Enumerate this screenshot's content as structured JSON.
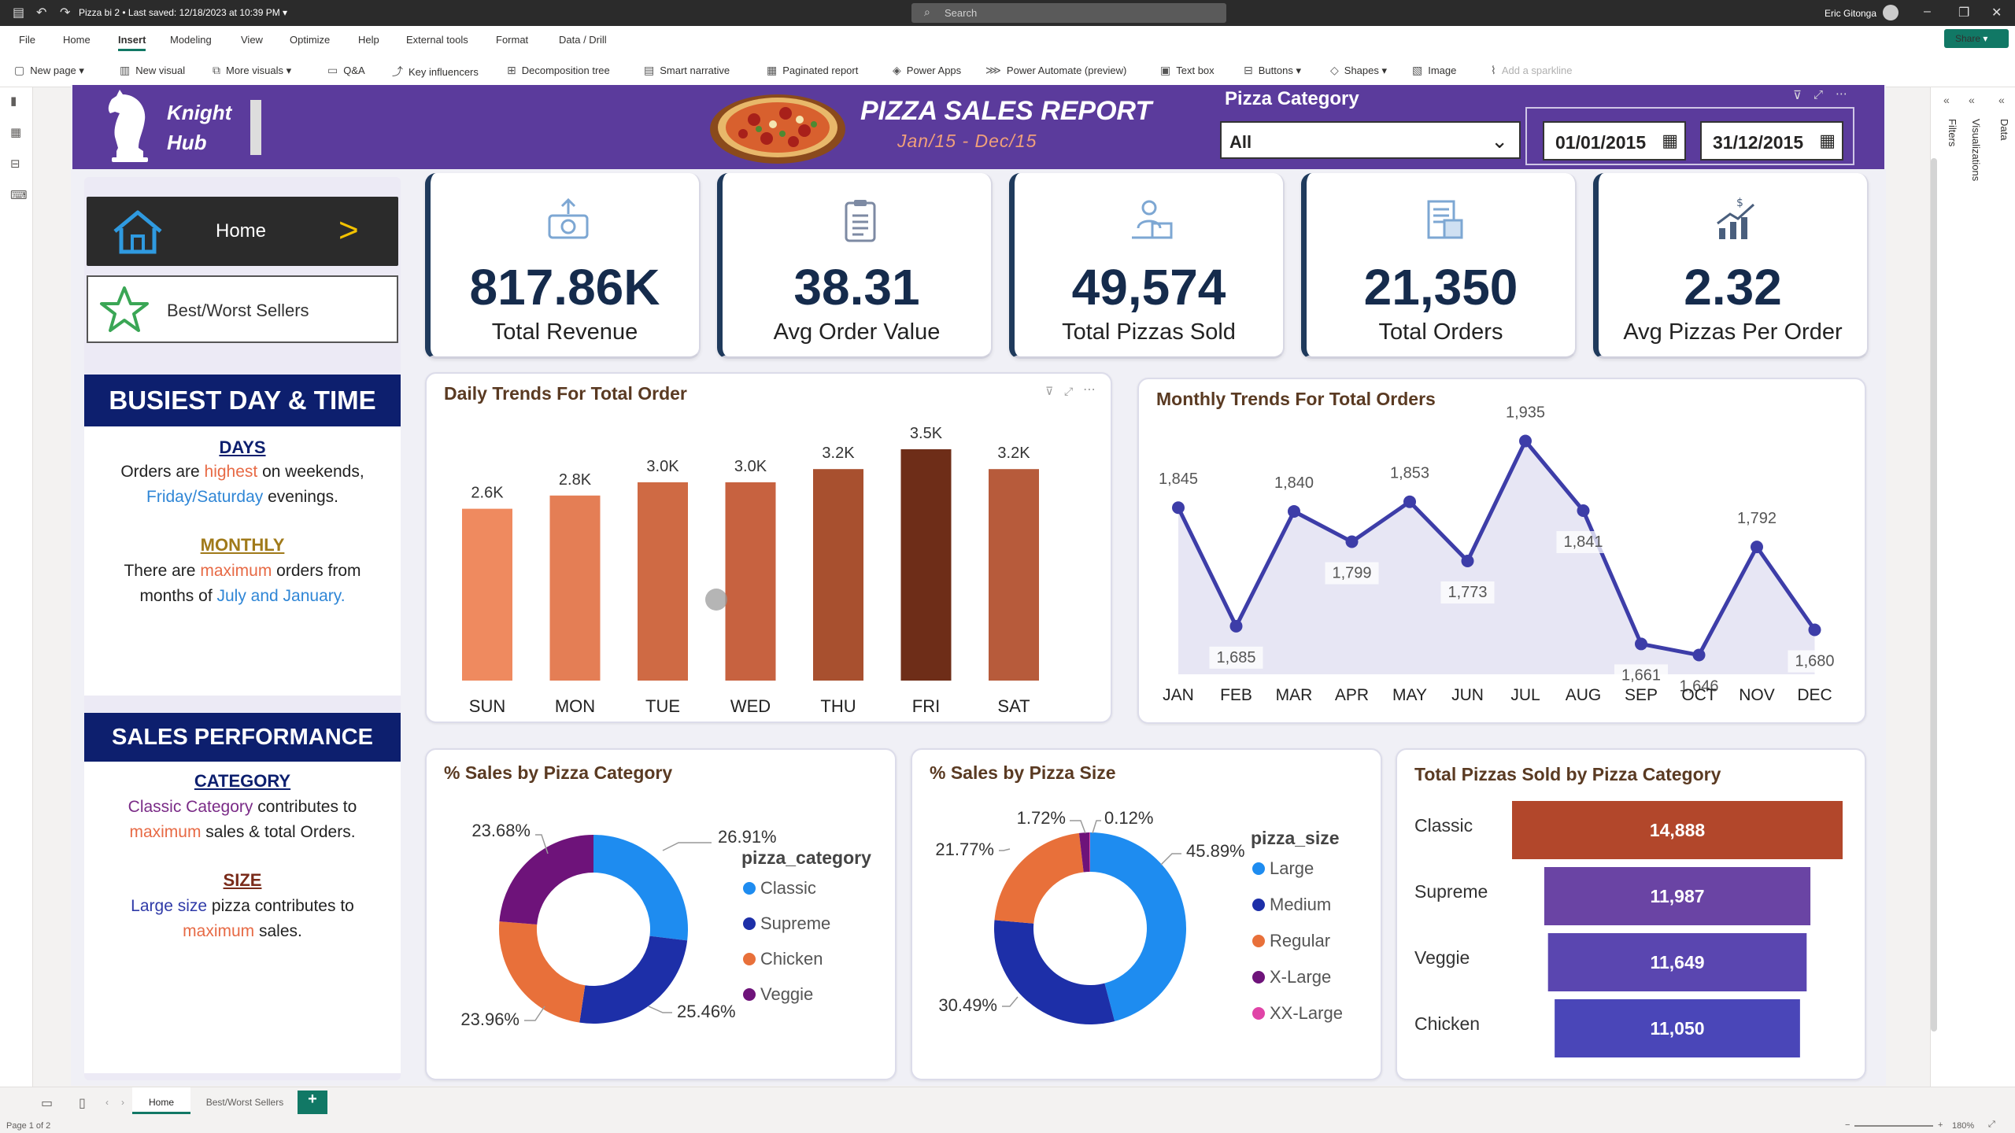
{
  "window": {
    "title": "Pizza bi 2 • Last saved: 12/18/2023 at 10:39 PM ▾",
    "search_placeholder": "Search",
    "user": "Eric Gitonga"
  },
  "menu": [
    "File",
    "Home",
    "Insert",
    "Modeling",
    "View",
    "Optimize",
    "Help",
    "External tools",
    "Format",
    "Data / Drill"
  ],
  "menu_active": "Insert",
  "share_label": "Share",
  "ribbon": [
    "New page",
    "New visual",
    "More visuals",
    "Q&A",
    "Key influencers",
    "Decomposition tree",
    "Smart narrative",
    "Paginated report",
    "Power Apps",
    "Power Automate (preview)",
    "Text box",
    "Buttons",
    "Shapes",
    "Image",
    "Add a sparkline"
  ],
  "right_panes": {
    "filters": "Filters",
    "visualizations": "Visualizations",
    "data": "Data"
  },
  "header": {
    "brand_line1": "Knight",
    "brand_line2": "Hub",
    "title": "PIZZA SALES REPORT",
    "subtitle": "Jan/15  -  Dec/15",
    "category_label": "Pizza Category",
    "category_value": "All",
    "date_from": "01/01/2015",
    "date_to": "31/12/2015"
  },
  "nav": {
    "home": "Home",
    "best_worst": "Best/Worst Sellers"
  },
  "busiest": {
    "heading": "BUSIEST DAY & TIME",
    "days_head": "DAYS",
    "days_t1": "Orders are ",
    "days_hl1": "highest",
    "days_t2": " on weekends,",
    "days_hl2": "Friday/Saturday",
    "days_t3": " evenings.",
    "monthly_head": "MONTHLY",
    "monthly_t1": "There are ",
    "monthly_hl1": "maximum",
    "monthly_t2": " orders from",
    "monthly_t3": "months of ",
    "monthly_hl2": "July and January."
  },
  "performance": {
    "heading": "SALES PERFORMANCE",
    "cat_head": "CATEGORY",
    "cat_hl1": "Classic Category",
    "cat_t1": " contributes to",
    "cat_hl2": "maximum",
    "cat_t2": " sales & total Orders.",
    "size_head": "SIZE",
    "size_hl1": "Large size",
    "size_t1": " pizza contributes to",
    "size_hl2": "maximum",
    "size_t2": " sales."
  },
  "kpis": [
    {
      "value": "817.86K",
      "label": "Total Revenue",
      "icon": "money-icon"
    },
    {
      "value": "38.31",
      "label": "Avg Order Value",
      "icon": "clipboard-icon"
    },
    {
      "value": "49,574",
      "label": "Total Pizzas Sold",
      "icon": "delivery-icon"
    },
    {
      "value": "21,350",
      "label": "Total Orders",
      "icon": "receipt-icon"
    },
    {
      "value": "2.32",
      "label": "Avg Pizzas Per Order",
      "icon": "growth-chart-icon"
    }
  ],
  "chart_data": [
    {
      "type": "bar",
      "title": "Daily Trends For Total Order",
      "categories": [
        "SUN",
        "MON",
        "TUE",
        "WED",
        "THU",
        "FRI",
        "SAT"
      ],
      "values": [
        2.6,
        2.8,
        3.0,
        3.0,
        3.2,
        3.5,
        3.2
      ],
      "labels": [
        "2.6K",
        "2.8K",
        "3.0K",
        "3.0K",
        "3.2K",
        "3.5K",
        "3.2K"
      ],
      "colors": [
        "#ef8a5f",
        "#e47e55",
        "#cf6a44",
        "#c76240",
        "#a8502f",
        "#6e2d18",
        "#b75b3b"
      ],
      "ylim": [
        0,
        3.5
      ]
    },
    {
      "type": "area",
      "title": "Monthly Trends For Total Orders",
      "categories": [
        "JAN",
        "FEB",
        "MAR",
        "APR",
        "MAY",
        "JUN",
        "JUL",
        "AUG",
        "SEP",
        "OCT",
        "NOV",
        "DEC"
      ],
      "values": [
        1845,
        1685,
        1840,
        1799,
        1853,
        1773,
        1935,
        1841,
        1661,
        1646,
        1792,
        1680
      ],
      "ylim": [
        1620,
        1960
      ]
    },
    {
      "type": "pie",
      "title": "% Sales by Pizza Category",
      "legend_title": "pizza_category",
      "series": [
        {
          "name": "Classic",
          "value": 26.91,
          "label": "26.91%",
          "color": "#1e8cf0"
        },
        {
          "name": "Supreme",
          "value": 25.46,
          "label": "25.46%",
          "color": "#1d2fa8"
        },
        {
          "name": "Chicken",
          "value": 23.96,
          "label": "23.96%",
          "color": "#e8703a"
        },
        {
          "name": "Veggie",
          "value": 23.68,
          "label": "23.68%",
          "color": "#6e137a"
        }
      ]
    },
    {
      "type": "pie",
      "title": "% Sales by Pizza Size",
      "legend_title": "pizza_size",
      "series": [
        {
          "name": "Large",
          "value": 45.89,
          "label": "45.89%",
          "color": "#1e8cf0"
        },
        {
          "name": "Medium",
          "value": 30.49,
          "label": "30.49%",
          "color": "#1d2fa8"
        },
        {
          "name": "Regular",
          "value": 21.77,
          "label": "21.77%",
          "color": "#e8703a"
        },
        {
          "name": "X-Large",
          "value": 1.72,
          "label": "1.72%",
          "color": "#6e137a"
        },
        {
          "name": "XX-Large",
          "value": 0.12,
          "label": "0.12%",
          "color": "#e044a7"
        }
      ]
    },
    {
      "type": "bar",
      "title": "Total Pizzas Sold by Pizza Category",
      "categories": [
        "Classic",
        "Supreme",
        "Veggie",
        "Chicken"
      ],
      "values": [
        14888,
        11987,
        11649,
        11050
      ],
      "labels": [
        "14,888",
        "11,987",
        "11,649",
        "11,050"
      ],
      "colors": [
        "#b2472b",
        "#6a44a4",
        "#5a46b0",
        "#4a46b8"
      ],
      "orientation": "funnel"
    }
  ],
  "pages": [
    "Home",
    "Best/Worst Sellers"
  ],
  "status": {
    "page": "Page 1 of 2",
    "zoom": "180%"
  }
}
